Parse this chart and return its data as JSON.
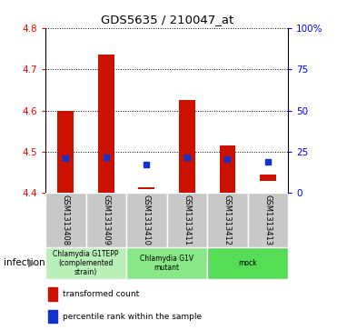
{
  "title": "GDS5635 / 210047_at",
  "samples": [
    "GSM1313408",
    "GSM1313409",
    "GSM1313410",
    "GSM1313411",
    "GSM1313412",
    "GSM1313413"
  ],
  "bar_bottoms": [
    4.4,
    4.4,
    4.41,
    4.4,
    4.4,
    4.43
  ],
  "bar_tops": [
    4.6,
    4.735,
    4.415,
    4.625,
    4.515,
    4.445
  ],
  "blue_y": [
    4.485,
    4.487,
    4.47,
    4.487,
    4.483,
    4.475
  ],
  "groups": [
    {
      "label": "Chlamydia G1TEPP\n(complemented\nstrain)",
      "start": 0,
      "end": 2,
      "color": "#b8f0b8"
    },
    {
      "label": "Chlamydia G1V\nmutant",
      "start": 2,
      "end": 4,
      "color": "#88e888"
    },
    {
      "label": "mock",
      "start": 4,
      "end": 6,
      "color": "#55dd55"
    }
  ],
  "ylim": [
    4.4,
    4.8
  ],
  "yticks": [
    4.4,
    4.5,
    4.6,
    4.7,
    4.8
  ],
  "right_ytick_labels": [
    "0",
    "25",
    "50",
    "75",
    "100%"
  ],
  "right_ytick_pos": [
    4.4,
    4.5,
    4.6,
    4.7,
    4.8
  ],
  "bar_color": "#cc1100",
  "blue_color": "#1133cc",
  "gray_color": "#c8c8c8",
  "infection_label": "infection",
  "legend_items": [
    "transformed count",
    "percentile rank within the sample"
  ]
}
